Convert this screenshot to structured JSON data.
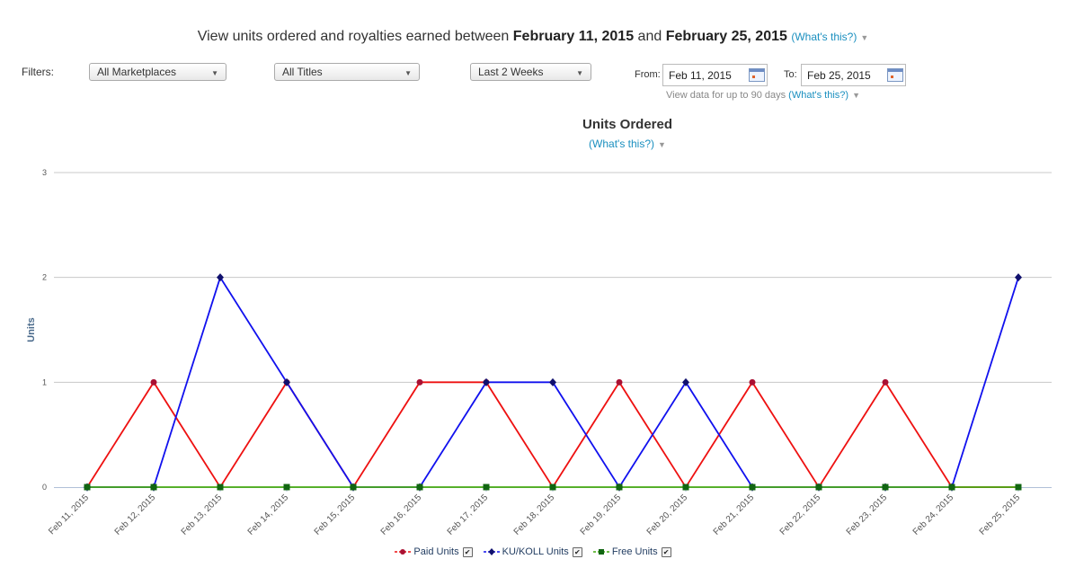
{
  "header": {
    "prefix": "View units ordered and royalties earned between",
    "start_date": "February 11, 2015",
    "connector": "and",
    "end_date": "February 25, 2015",
    "whats_this": "(What's this?)"
  },
  "filters": {
    "label": "Filters:",
    "marketplace": "All Marketplaces",
    "titles": "All Titles",
    "period": "Last 2 Weeks",
    "from_label": "From:",
    "from_value": "Feb 11, 2015",
    "to_label": "To:",
    "to_value": "Feb 25, 2015",
    "range_note": "View data for up to 90 days",
    "range_whats_this": "(What's this?)"
  },
  "chart_data": {
    "type": "line",
    "title": "Units Ordered",
    "subtitle": "(What's this?)",
    "ylabel": "Units",
    "xlabel": "",
    "ylim": [
      0,
      3
    ],
    "yticks": [
      0,
      1,
      2,
      3
    ],
    "grid": true,
    "legend_position": "bottom",
    "categories": [
      "Feb 11, 2015",
      "Feb 12, 2015",
      "Feb 13, 2015",
      "Feb 14, 2015",
      "Feb 15, 2015",
      "Feb 16, 2015",
      "Feb 17, 2015",
      "Feb 18, 2015",
      "Feb 19, 2015",
      "Feb 20, 2015",
      "Feb 21, 2015",
      "Feb 22, 2015",
      "Feb 23, 2015",
      "Feb 24, 2015",
      "Feb 25, 2015"
    ],
    "series": [
      {
        "name": "Paid Units",
        "color": "#ee1111",
        "marker_color": "#aa1133",
        "marker": "circle",
        "values": [
          0,
          1,
          0,
          1,
          0,
          1,
          1,
          0,
          1,
          0,
          1,
          0,
          1,
          0,
          0
        ]
      },
      {
        "name": "KU/KOLL Units",
        "color": "#1111ee",
        "marker_color": "#11116e",
        "marker": "diamond",
        "values": [
          0,
          0,
          2,
          1,
          0,
          0,
          1,
          1,
          0,
          1,
          0,
          0,
          0,
          0,
          2
        ]
      },
      {
        "name": "Free Units",
        "color": "#44aa11",
        "marker_color": "#116611",
        "marker": "square",
        "values": [
          0,
          0,
          0,
          0,
          0,
          0,
          0,
          0,
          0,
          0,
          0,
          0,
          0,
          0,
          0
        ]
      }
    ]
  }
}
